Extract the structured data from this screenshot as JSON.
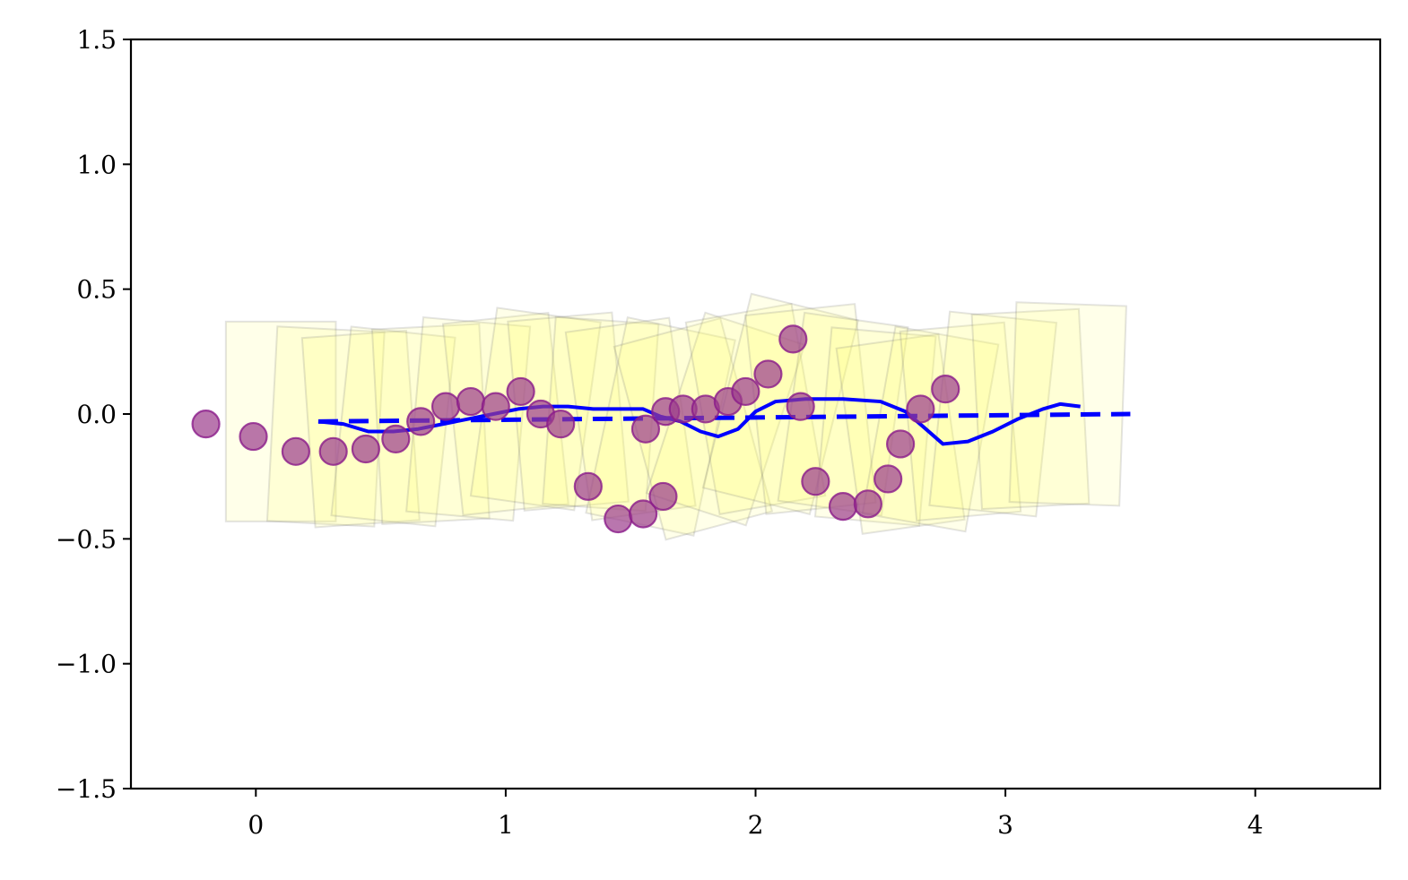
{
  "chart_data": {
    "type": "scatter",
    "title": "",
    "xlabel": "",
    "ylabel": "",
    "xlim": [
      -0.5,
      4.5
    ],
    "ylim": [
      -1.5,
      1.5
    ],
    "grid": false,
    "x_ticks": [
      0,
      1,
      2,
      3,
      4
    ],
    "x_tick_labels": [
      "0",
      "1",
      "2",
      "3",
      "4"
    ],
    "y_ticks": [
      -1.5,
      -1.0,
      -0.5,
      0.0,
      0.5,
      1.0,
      1.5
    ],
    "y_tick_labels": [
      "−1.5",
      "−1.0",
      "−0.5",
      "0.0",
      "0.5",
      "1.0",
      "1.5"
    ],
    "colors": {
      "points_fill": "#9b3c8c",
      "points_edge": "#8a1a8a",
      "line": "#0000ff",
      "box_fill": "#ffff66",
      "box_edge": "#808080"
    },
    "series": [
      {
        "kind": "points",
        "x": [
          -0.2,
          -0.01,
          0.16,
          0.31,
          0.44,
          0.56,
          0.66,
          0.76,
          0.86,
          0.96,
          1.06,
          1.14,
          1.22,
          1.33,
          1.45,
          1.55,
          1.56,
          1.63,
          1.64,
          1.71,
          1.8,
          1.89,
          1.96,
          2.05,
          2.15,
          2.18,
          2.24,
          2.35,
          2.45,
          2.53,
          2.58,
          2.66,
          2.76
        ],
        "y": [
          -0.04,
          -0.09,
          -0.15,
          -0.15,
          -0.14,
          -0.1,
          -0.03,
          0.03,
          0.05,
          0.03,
          0.09,
          0.0,
          -0.04,
          -0.29,
          -0.42,
          -0.4,
          -0.06,
          -0.33,
          0.01,
          0.02,
          0.02,
          0.05,
          0.09,
          0.16,
          0.3,
          0.03,
          -0.27,
          -0.37,
          -0.36,
          -0.26,
          -0.12,
          0.02,
          0.1
        ]
      },
      {
        "kind": "dashed-line",
        "x": [
          0.25,
          3.5
        ],
        "y": [
          -0.03,
          0.0
        ]
      },
      {
        "kind": "solid-line",
        "x": [
          0.25,
          0.35,
          0.45,
          0.55,
          0.65,
          0.75,
          0.85,
          0.95,
          1.05,
          1.15,
          1.25,
          1.35,
          1.45,
          1.55,
          1.62,
          1.7,
          1.78,
          1.85,
          1.93,
          2.0,
          2.08,
          2.2,
          2.35,
          2.5,
          2.6,
          2.67,
          2.75,
          2.85,
          2.95,
          3.05,
          3.15,
          3.22,
          3.3
        ],
        "y": [
          -0.03,
          -0.04,
          -0.07,
          -0.07,
          -0.06,
          -0.04,
          -0.02,
          0.0,
          0.02,
          0.03,
          0.03,
          0.02,
          0.02,
          0.02,
          -0.01,
          -0.03,
          -0.07,
          -0.09,
          -0.06,
          0.01,
          0.05,
          0.06,
          0.06,
          0.05,
          0.01,
          -0.05,
          -0.12,
          -0.11,
          -0.07,
          -0.02,
          0.02,
          0.04,
          0.03
        ]
      },
      {
        "kind": "translucent-boxes",
        "cx": [
          0.1,
          0.28,
          0.42,
          0.55,
          0.7,
          0.85,
          1.0,
          1.12,
          1.25,
          1.38,
          1.5,
          1.62,
          1.75,
          1.88,
          2.0,
          2.1,
          2.22,
          2.35,
          2.48,
          2.58,
          2.7,
          2.82,
          2.95,
          3.1,
          3.25
        ],
        "cy": [
          -0.03,
          -0.05,
          -0.06,
          -0.05,
          -0.04,
          -0.02,
          0.0,
          0.02,
          0.01,
          0.0,
          -0.02,
          -0.05,
          -0.06,
          -0.02,
          0.02,
          0.04,
          0.02,
          0.0,
          -0.05,
          -0.08,
          -0.06,
          -0.03,
          0.0,
          0.02,
          0.04
        ],
        "size": [
          0.8,
          0.78,
          0.76,
          0.76,
          0.78,
          0.78,
          0.77,
          0.76,
          0.76,
          0.75,
          0.76,
          0.8,
          0.8,
          0.76,
          0.78,
          0.8,
          0.8,
          0.76,
          0.76,
          0.75,
          0.76,
          0.76,
          0.78,
          0.78,
          0.8
        ],
        "angle_deg": [
          0,
          3,
          -4,
          6,
          -3,
          5,
          -6,
          8,
          -5,
          4,
          -8,
          12,
          -15,
          18,
          -10,
          14,
          -6,
          8,
          5,
          -8,
          10,
          -5,
          6,
          -3,
          2
        ]
      }
    ]
  }
}
